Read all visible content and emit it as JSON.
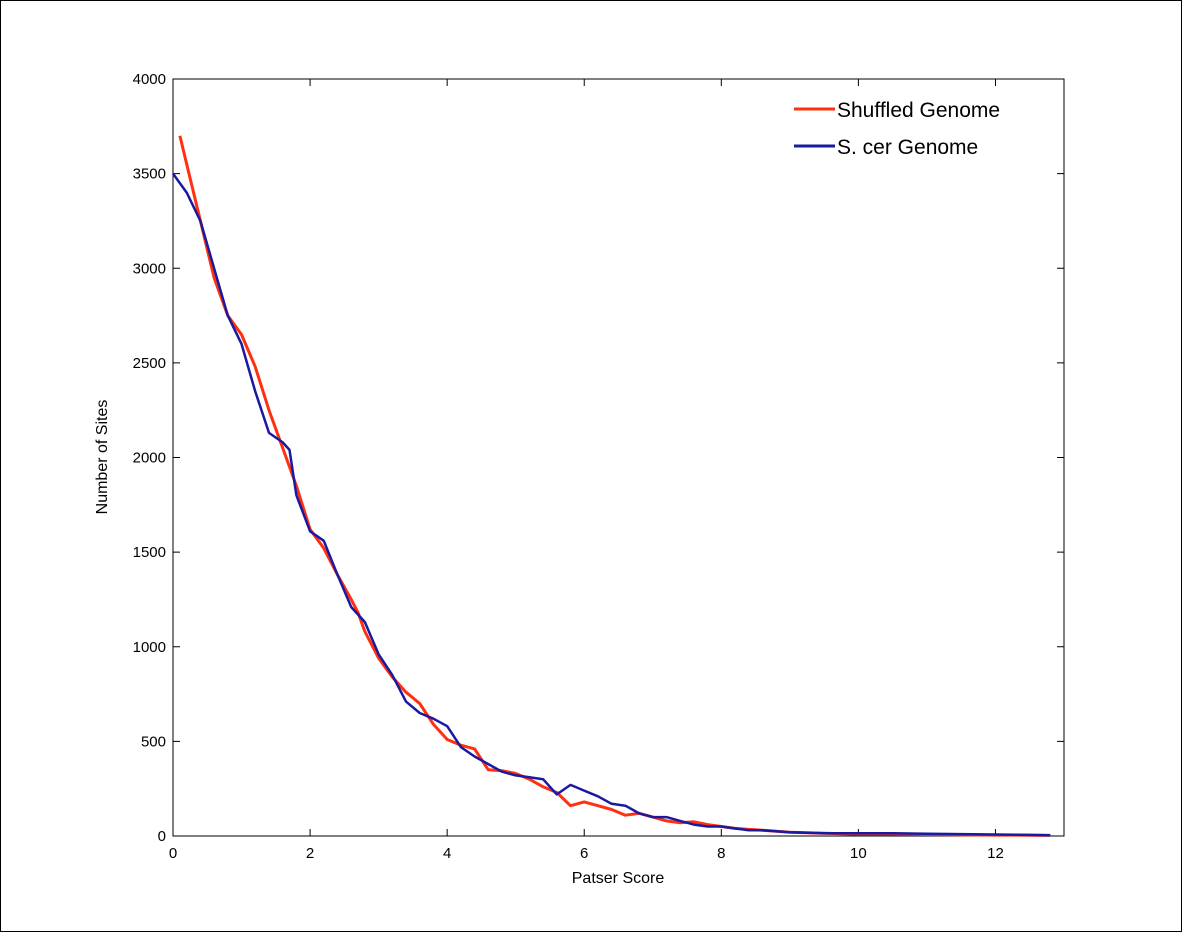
{
  "chart_data": {
    "type": "line",
    "xlabel": "Patser Score",
    "ylabel": "Number of Sites",
    "xlim": [
      0,
      13
    ],
    "ylim": [
      0,
      4000
    ],
    "xticks": [
      0,
      2,
      4,
      6,
      8,
      10,
      12
    ],
    "yticks": [
      0,
      500,
      1000,
      1500,
      2000,
      2500,
      3000,
      3500,
      4000
    ],
    "grid": false,
    "legend_position": "top-right",
    "series": [
      {
        "name": "Shuffled Genome",
        "color": "#ff3010",
        "x": [
          0.1,
          0.2,
          0.4,
          0.6,
          0.8,
          1.0,
          1.2,
          1.4,
          1.6,
          1.8,
          2.0,
          2.2,
          2.4,
          2.6,
          2.7,
          2.8,
          3.0,
          3.2,
          3.4,
          3.6,
          3.8,
          4.0,
          4.2,
          4.4,
          4.6,
          4.8,
          5.0,
          5.2,
          5.4,
          5.6,
          5.8,
          6.0,
          6.2,
          6.4,
          6.6,
          6.8,
          7.0,
          7.2,
          7.4,
          7.6,
          7.8,
          8.0,
          8.2,
          8.4,
          8.6,
          8.8,
          9.0,
          9.5,
          10.0,
          10.5,
          11.0,
          11.5,
          12.0,
          12.5,
          12.8
        ],
        "y": [
          3700,
          3550,
          3250,
          2950,
          2750,
          2650,
          2480,
          2250,
          2050,
          1850,
          1620,
          1520,
          1380,
          1250,
          1180,
          1080,
          940,
          840,
          760,
          700,
          590,
          510,
          480,
          460,
          350,
          345,
          330,
          300,
          260,
          230,
          160,
          180,
          160,
          140,
          110,
          120,
          100,
          80,
          70,
          75,
          60,
          50,
          40,
          35,
          30,
          25,
          20,
          15,
          10,
          10,
          8,
          6,
          5,
          4,
          3
        ]
      },
      {
        "name": "S. cer Genome",
        "color": "#1a1aa0",
        "x": [
          0.0,
          0.2,
          0.4,
          0.6,
          0.8,
          1.0,
          1.2,
          1.4,
          1.6,
          1.7,
          1.8,
          2.0,
          2.2,
          2.4,
          2.6,
          2.8,
          3.0,
          3.2,
          3.4,
          3.6,
          3.8,
          4.0,
          4.2,
          4.4,
          4.6,
          4.8,
          5.0,
          5.2,
          5.4,
          5.6,
          5.8,
          6.0,
          6.2,
          6.4,
          6.6,
          6.8,
          7.0,
          7.2,
          7.4,
          7.6,
          7.8,
          8.0,
          8.2,
          8.4,
          8.6,
          8.8,
          9.0,
          9.5,
          10.0,
          10.5,
          11.0,
          11.5,
          12.0,
          12.5,
          12.8
        ],
        "y": [
          3500,
          3400,
          3250,
          3000,
          2750,
          2600,
          2350,
          2130,
          2080,
          2040,
          1800,
          1610,
          1560,
          1380,
          1210,
          1130,
          960,
          850,
          710,
          650,
          620,
          580,
          470,
          420,
          380,
          340,
          320,
          310,
          300,
          220,
          270,
          240,
          210,
          170,
          160,
          120,
          100,
          100,
          80,
          60,
          50,
          50,
          40,
          30,
          30,
          25,
          20,
          15,
          15,
          15,
          12,
          10,
          8,
          6,
          4
        ]
      }
    ]
  }
}
